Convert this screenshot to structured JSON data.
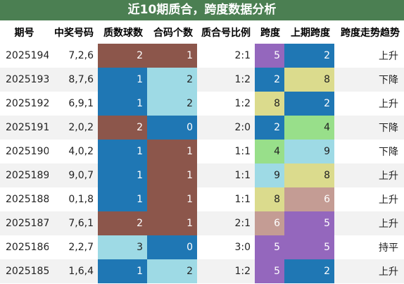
{
  "title": "近10期质合，跨度数据分析",
  "headers": [
    "期号",
    "中奖号码",
    "质数球数",
    "合码个数",
    "质合号比例",
    "跨度",
    "上期跨度",
    "跨度走势趋势"
  ],
  "colors": {
    "title_bg": "#4b7f52",
    "v0": "#1f77b4",
    "v1_prime": "#1f77b4",
    "v2_prime": "#8c564b",
    "v3_prime": "#9edae5",
    "c0": "#1f77b4",
    "c1": "#8c564b",
    "c2": "#9edae5",
    "span2": "#1f77b4",
    "span4": "#98df8a",
    "span5": "#9467bd",
    "span6": "#c49c94",
    "span8": "#dbdb8d",
    "span9": "#9edae5"
  },
  "rows": [
    {
      "issue": "2025194",
      "numbers": "7,2,6",
      "primes": "2",
      "composites": "1",
      "ratio": "2:1",
      "span": "5",
      "prev_span": "2",
      "trend": "上升"
    },
    {
      "issue": "2025193",
      "numbers": "8,7,6",
      "primes": "1",
      "composites": "2",
      "ratio": "1:2",
      "span": "2",
      "prev_span": "8",
      "trend": "下降"
    },
    {
      "issue": "2025192",
      "numbers": "6,9,1",
      "primes": "1",
      "composites": "2",
      "ratio": "1:2",
      "span": "8",
      "prev_span": "2",
      "trend": "上升"
    },
    {
      "issue": "2025191",
      "numbers": "2,0,2",
      "primes": "2",
      "composites": "0",
      "ratio": "2:0",
      "span": "2",
      "prev_span": "4",
      "trend": "下降"
    },
    {
      "issue": "2025190",
      "numbers": "4,0,2",
      "primes": "1",
      "composites": "1",
      "ratio": "1:1",
      "span": "4",
      "prev_span": "9",
      "trend": "下降"
    },
    {
      "issue": "2025189",
      "numbers": "9,0,7",
      "primes": "1",
      "composites": "1",
      "ratio": "1:1",
      "span": "9",
      "prev_span": "8",
      "trend": "上升"
    },
    {
      "issue": "2025188",
      "numbers": "0,1,8",
      "primes": "1",
      "composites": "1",
      "ratio": "1:1",
      "span": "8",
      "prev_span": "6",
      "trend": "上升"
    },
    {
      "issue": "2025187",
      "numbers": "7,6,1",
      "primes": "2",
      "composites": "1",
      "ratio": "2:1",
      "span": "6",
      "prev_span": "5",
      "trend": "上升"
    },
    {
      "issue": "2025186",
      "numbers": "2,2,7",
      "primes": "3",
      "composites": "0",
      "ratio": "3:0",
      "span": "5",
      "prev_span": "5",
      "trend": "持平"
    },
    {
      "issue": "2025185",
      "numbers": "1,6,4",
      "primes": "1",
      "composites": "2",
      "ratio": "1:2",
      "span": "5",
      "prev_span": "2",
      "trend": "上升"
    }
  ]
}
